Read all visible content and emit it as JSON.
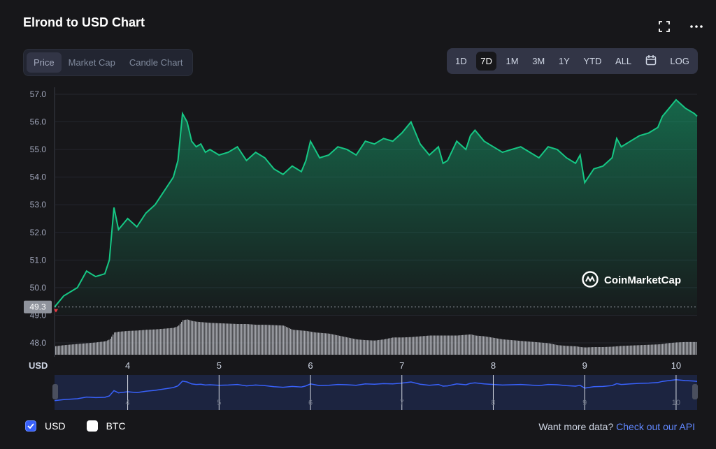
{
  "title": "Elrond to USD Chart",
  "tabs": [
    "Price",
    "Market Cap",
    "Candle Chart"
  ],
  "ranges": [
    "1D",
    "7D",
    "1M",
    "3M",
    "1Y",
    "YTD",
    "ALL",
    "calendar-icon",
    "LOG"
  ],
  "active_range": "7D",
  "watermark": "CoinMarketCap",
  "legend": {
    "usd": "USD",
    "btc": "BTC"
  },
  "footer": {
    "text": "Want more data?",
    "link": "Check out our API"
  },
  "colors": {
    "line": "#16c784",
    "nav_line": "#3861fb"
  },
  "chart_data": {
    "type": "line",
    "title": "Elrond to USD Chart",
    "ylabel": "USD",
    "ylim": [
      48.0,
      57.0
    ],
    "y_ticks": [
      "57.0",
      "56.0",
      "55.0",
      "54.0",
      "53.0",
      "52.0",
      "51.0",
      "50.0",
      "49.0",
      "48.0"
    ],
    "x_ticks": [
      "4",
      "5",
      "6",
      "7",
      "8",
      "9",
      "10"
    ],
    "open_price_label": "49.3",
    "open_price": 49.3,
    "x": [
      3.2,
      3.3,
      3.45,
      3.55,
      3.65,
      3.75,
      3.8,
      3.85,
      3.9,
      4.0,
      4.1,
      4.2,
      4.3,
      4.4,
      4.5,
      4.55,
      4.6,
      4.65,
      4.7,
      4.75,
      4.8,
      4.85,
      4.9,
      5.0,
      5.1,
      5.2,
      5.3,
      5.4,
      5.5,
      5.6,
      5.7,
      5.8,
      5.9,
      5.95,
      6.0,
      6.05,
      6.1,
      6.2,
      6.3,
      6.4,
      6.5,
      6.6,
      6.7,
      6.8,
      6.9,
      7.0,
      7.1,
      7.2,
      7.3,
      7.4,
      7.45,
      7.5,
      7.6,
      7.7,
      7.75,
      7.8,
      7.9,
      8.0,
      8.1,
      8.2,
      8.3,
      8.4,
      8.5,
      8.6,
      8.7,
      8.8,
      8.9,
      8.95,
      9.0,
      9.1,
      9.2,
      9.3,
      9.35,
      9.4,
      9.5,
      9.6,
      9.7,
      9.8,
      9.85,
      9.9,
      10.0,
      10.1,
      10.2,
      10.23
    ],
    "values": [
      49.3,
      49.7,
      50.0,
      50.6,
      50.4,
      50.5,
      51.0,
      52.9,
      52.1,
      52.5,
      52.2,
      52.7,
      53.0,
      53.5,
      54.0,
      54.6,
      56.3,
      56.0,
      55.3,
      55.1,
      55.2,
      54.9,
      55.0,
      54.8,
      54.9,
      55.1,
      54.6,
      54.9,
      54.7,
      54.3,
      54.1,
      54.4,
      54.2,
      54.6,
      55.3,
      55.0,
      54.7,
      54.8,
      55.1,
      55.0,
      54.8,
      55.3,
      55.2,
      55.4,
      55.3,
      55.6,
      56.0,
      55.2,
      54.8,
      55.1,
      54.5,
      54.6,
      55.3,
      55.0,
      55.5,
      55.7,
      55.3,
      55.1,
      54.9,
      55.0,
      55.1,
      54.9,
      54.7,
      55.1,
      55.0,
      54.7,
      54.5,
      54.8,
      53.8,
      54.3,
      54.4,
      54.7,
      55.4,
      55.1,
      55.3,
      55.5,
      55.6,
      55.8,
      56.2,
      56.4,
      56.8,
      56.5,
      56.3,
      56.2
    ],
    "volume": [
      0.22,
      0.25,
      0.28,
      0.3,
      0.32,
      0.35,
      0.4,
      0.58,
      0.6,
      0.62,
      0.63,
      0.65,
      0.66,
      0.68,
      0.7,
      0.75,
      0.9,
      0.92,
      0.88,
      0.86,
      0.85,
      0.84,
      0.83,
      0.82,
      0.81,
      0.8,
      0.8,
      0.78,
      0.78,
      0.77,
      0.76,
      0.65,
      0.63,
      0.62,
      0.6,
      0.58,
      0.57,
      0.55,
      0.5,
      0.45,
      0.4,
      0.38,
      0.37,
      0.4,
      0.45,
      0.45,
      0.46,
      0.48,
      0.5,
      0.5,
      0.5,
      0.5,
      0.5,
      0.52,
      0.53,
      0.5,
      0.48,
      0.44,
      0.4,
      0.38,
      0.36,
      0.34,
      0.32,
      0.3,
      0.25,
      0.23,
      0.22,
      0.2,
      0.19,
      0.2,
      0.2,
      0.21,
      0.22,
      0.23,
      0.24,
      0.25,
      0.26,
      0.27,
      0.28,
      0.3,
      0.32,
      0.33,
      0.33,
      0.33
    ],
    "grid": true
  }
}
